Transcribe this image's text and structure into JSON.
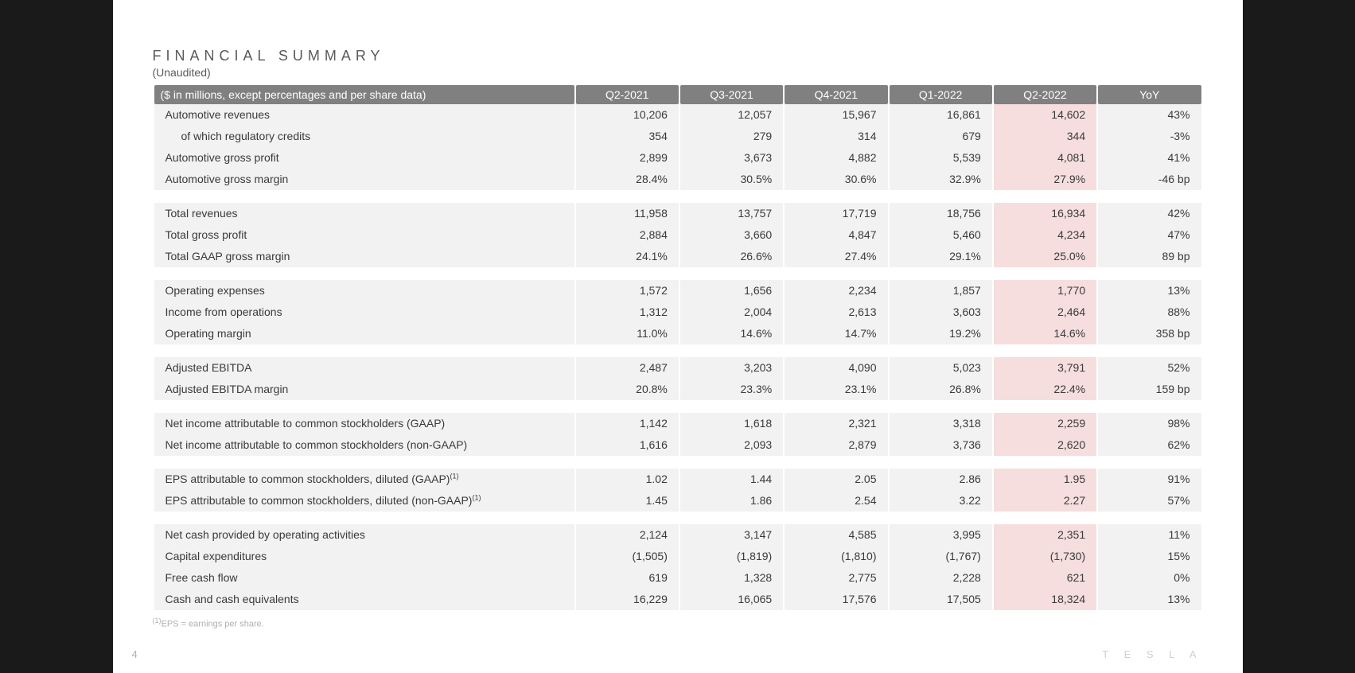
{
  "title": "FINANCIAL SUMMARY",
  "subtitle": "(Unaudited)",
  "header_note": "($ in millions, except percentages and per share data)",
  "columns": [
    "Q2-2021",
    "Q3-2021",
    "Q4-2021",
    "Q1-2022",
    "Q2-2022",
    "YoY"
  ],
  "highlight_column_index": 4,
  "colors": {
    "page_bg": "#ffffff",
    "outer_bg": "#1a1a1a",
    "header_bg": "#808080",
    "header_fg": "#ffffff",
    "row_bg": "#f2f2f2",
    "highlight_bg": "#f5dedd",
    "text": "#3a3a3a",
    "muted": "#b0b0b0"
  },
  "groups": [
    [
      {
        "label": "Automotive revenues",
        "values": [
          "10,206",
          "12,057",
          "15,967",
          "16,861",
          "14,602",
          "43%"
        ]
      },
      {
        "label": "of which regulatory credits",
        "indent": true,
        "values": [
          "354",
          "279",
          "314",
          "679",
          "344",
          "-3%"
        ]
      },
      {
        "label": "Automotive gross profit",
        "values": [
          "2,899",
          "3,673",
          "4,882",
          "5,539",
          "4,081",
          "41%"
        ]
      },
      {
        "label": "Automotive gross margin",
        "values": [
          "28.4%",
          "30.5%",
          "30.6%",
          "32.9%",
          "27.9%",
          "-46 bp"
        ]
      }
    ],
    [
      {
        "label": "Total revenues",
        "values": [
          "11,958",
          "13,757",
          "17,719",
          "18,756",
          "16,934",
          "42%"
        ]
      },
      {
        "label": "Total gross profit",
        "values": [
          "2,884",
          "3,660",
          "4,847",
          "5,460",
          "4,234",
          "47%"
        ]
      },
      {
        "label": "Total GAAP gross margin",
        "values": [
          "24.1%",
          "26.6%",
          "27.4%",
          "29.1%",
          "25.0%",
          "89 bp"
        ]
      }
    ],
    [
      {
        "label": "Operating expenses",
        "values": [
          "1,572",
          "1,656",
          "2,234",
          "1,857",
          "1,770",
          "13%"
        ]
      },
      {
        "label": "Income from operations",
        "values": [
          "1,312",
          "2,004",
          "2,613",
          "3,603",
          "2,464",
          "88%"
        ]
      },
      {
        "label": "Operating margin",
        "values": [
          "11.0%",
          "14.6%",
          "14.7%",
          "19.2%",
          "14.6%",
          "358 bp"
        ]
      }
    ],
    [
      {
        "label": "Adjusted EBITDA",
        "values": [
          "2,487",
          "3,203",
          "4,090",
          "5,023",
          "3,791",
          "52%"
        ]
      },
      {
        "label": "Adjusted EBITDA margin",
        "values": [
          "20.8%",
          "23.3%",
          "23.1%",
          "26.8%",
          "22.4%",
          "159 bp"
        ]
      }
    ],
    [
      {
        "label": "Net income attributable to common stockholders (GAAP)",
        "values": [
          "1,142",
          "1,618",
          "2,321",
          "3,318",
          "2,259",
          "98%"
        ]
      },
      {
        "label": "Net income attributable to common stockholders (non-GAAP)",
        "values": [
          "1,616",
          "2,093",
          "2,879",
          "3,736",
          "2,620",
          "62%"
        ]
      }
    ],
    [
      {
        "label": "EPS attributable to common stockholders, diluted (GAAP)",
        "sup": "(1)",
        "values": [
          "1.02",
          "1.44",
          "2.05",
          "2.86",
          "1.95",
          "91%"
        ]
      },
      {
        "label": "EPS attributable to common stockholders, diluted (non-GAAP)",
        "sup": "(1)",
        "values": [
          "1.45",
          "1.86",
          "2.54",
          "3.22",
          "2.27",
          "57%"
        ]
      }
    ],
    [
      {
        "label": "Net cash provided by operating activities",
        "values": [
          "2,124",
          "3,147",
          "4,585",
          "3,995",
          "2,351",
          "11%"
        ]
      },
      {
        "label": "Capital expenditures",
        "values": [
          "(1,505)",
          "(1,819)",
          "(1,810)",
          "(1,767)",
          "(1,730)",
          "15%"
        ]
      },
      {
        "label": "Free cash flow",
        "values": [
          "619",
          "1,328",
          "2,775",
          "2,228",
          "621",
          "0%"
        ]
      },
      {
        "label": "Cash and cash equivalents",
        "values": [
          "16,229",
          "16,065",
          "17,576",
          "17,505",
          "18,324",
          "13%"
        ]
      }
    ]
  ],
  "footnote_marker": "(1)",
  "footnote": "EPS = earnings per share.",
  "page_number": "4",
  "logo_text": "T E S L A"
}
